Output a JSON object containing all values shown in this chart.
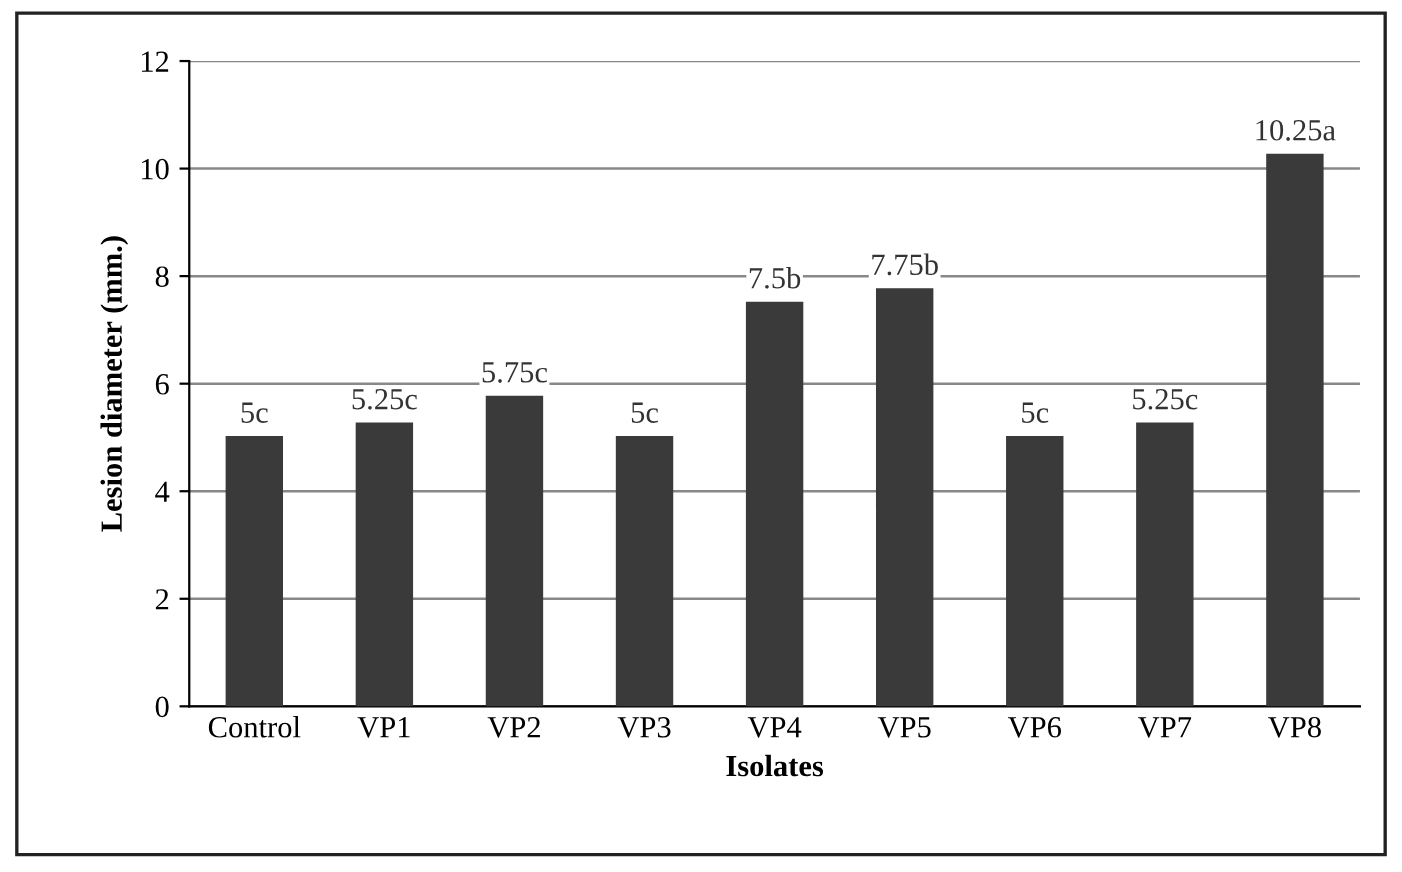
{
  "chart_data": {
    "type": "bar",
    "xlabel": "Isolates",
    "ylabel": "Lesion diameter (mm.)",
    "categories": [
      "Control",
      "VP1",
      "VP2",
      "VP3",
      "VP4",
      "VP5",
      "VP6",
      "VP7",
      "VP8"
    ],
    "values": [
      5,
      5.25,
      5.75,
      5,
      7.5,
      7.75,
      5,
      5.25,
      10.25
    ],
    "value_labels": [
      "5c",
      "5.25c",
      "5.75c",
      "5c",
      "7.5b",
      "7.75b",
      "5c",
      "5.25c",
      "10.25a"
    ],
    "color": "#3a3a3a",
    "ylim": [
      0,
      12
    ],
    "yticks": [
      0,
      2,
      4,
      6,
      8,
      10,
      12
    ],
    "grid": "y"
  }
}
